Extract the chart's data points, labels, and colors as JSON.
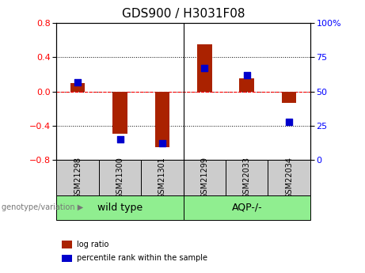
{
  "title": "GDS900 / H3031F08",
  "categories": [
    "GSM21298",
    "GSM21300",
    "GSM21301",
    "GSM21299",
    "GSM22033",
    "GSM22034"
  ],
  "log_ratios": [
    0.1,
    -0.5,
    -0.65,
    0.55,
    0.15,
    -0.13
  ],
  "percentile_ranks": [
    57,
    15,
    12,
    67,
    62,
    28
  ],
  "groups": [
    {
      "label": "wild type",
      "start": 0,
      "end": 3
    },
    {
      "label": "AQP-/-",
      "start": 3,
      "end": 6
    }
  ],
  "ylim_left": [
    -0.8,
    0.8
  ],
  "ylim_right": [
    0,
    100
  ],
  "yticks_left": [
    -0.8,
    -0.4,
    0.0,
    0.4,
    0.8
  ],
  "yticks_right": [
    0,
    25,
    50,
    75,
    100
  ],
  "bar_color": "#AA2200",
  "dot_color": "#0000CC",
  "bar_width": 0.35,
  "dot_size": 28,
  "legend_log_ratio": "log ratio",
  "legend_percentile": "percentile rank within the sample",
  "title_fontsize": 11,
  "tick_fontsize": 8,
  "label_fontsize": 8,
  "group_fontsize": 9
}
